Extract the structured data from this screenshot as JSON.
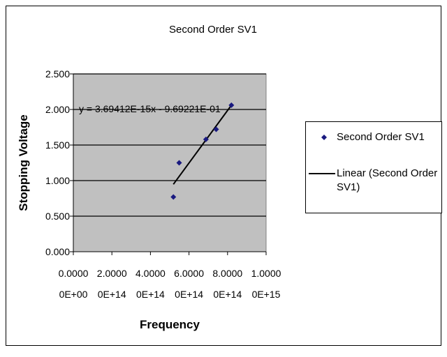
{
  "chart_data": {
    "type": "scatter",
    "title": "Second Order SV1",
    "xlabel": "Frequency",
    "ylabel": "Stopping Voltage",
    "xlim": [
      0,
      1000000000000000.0
    ],
    "ylim": [
      0,
      2.5
    ],
    "x_tick_values": [
      0,
      200000000000000.0,
      400000000000000.0,
      600000000000000.0,
      800000000000000.0,
      1000000000000000.0
    ],
    "x_tick_labels": [
      [
        "0.0000",
        "0E+00"
      ],
      [
        "2.0000",
        "0E+14"
      ],
      [
        "4.0000",
        "0E+14"
      ],
      [
        "6.0000",
        "0E+14"
      ],
      [
        "8.0000",
        "0E+14"
      ],
      [
        "1.0000",
        "0E+15"
      ]
    ],
    "y_tick_values": [
      0,
      0.5,
      1,
      1.5,
      2,
      2.5
    ],
    "y_tick_labels": [
      "0.000",
      "0.500",
      "1.000",
      "1.500",
      "2.000",
      "2.500"
    ],
    "grid": true,
    "legend_position": "right",
    "series": [
      {
        "name": "Second Order SV1",
        "type": "scatter",
        "color": "#1a1a80",
        "marker": "diamond",
        "x": [
          519000000000000.0,
          549000000000000.0,
          688000000000000.0,
          741000000000000.0,
          820000000000000.0
        ],
        "y": [
          0.77,
          1.25,
          1.58,
          1.72,
          2.06
        ]
      },
      {
        "name": "Linear (Second Order SV1)",
        "type": "trendline",
        "color": "#000000",
        "x": [
          519000000000000.0,
          820000000000000.0
        ],
        "y": [
          0.948,
          2.06
        ]
      }
    ],
    "annotation": "y = 3.69412E-15x - 9.69221E-01",
    "plot_background": "#c0c0c0"
  }
}
